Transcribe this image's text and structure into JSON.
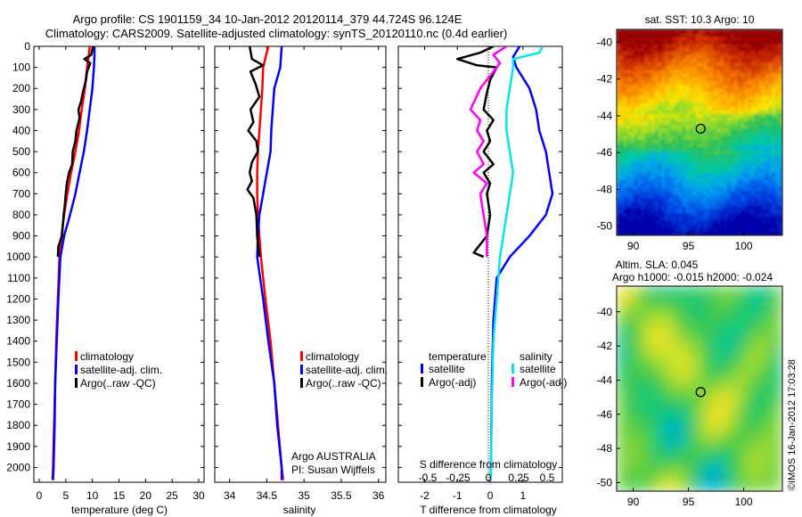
{
  "header": {
    "title_line1": "Argo profile: CS 1901159_34 10-Jan-2012 20120114_379 44.724S 96.124E",
    "title_line2": "Climatology: CARS2009. Satellite-adjusted climatology: synTS_20120110.nc (0.4d earlier)"
  },
  "colors": {
    "climatology": "#ff0000",
    "satellite": "#0000ff",
    "argo": "#000000",
    "salinity_satellite": "#00e5ee",
    "salinity_argo": "#ff00ff"
  },
  "chart_data": [
    {
      "id": "temperature",
      "type": "line",
      "xlabel": "temperature (deg C)",
      "xlim": [
        -1,
        31
      ],
      "xticks": [
        0,
        5,
        10,
        15,
        20,
        25,
        30
      ],
      "ylim": [
        2070,
        0
      ],
      "yticks": [
        0,
        100,
        200,
        300,
        400,
        500,
        600,
        700,
        800,
        900,
        1000,
        1100,
        1200,
        1300,
        1400,
        1500,
        1600,
        1700,
        1800,
        1900,
        2000
      ],
      "legend": [
        "climatology",
        "satellite-adj. clim.",
        "Argo(..raw -QC)"
      ],
      "series": [
        {
          "name": "climatology",
          "color": "#ff0000",
          "points": [
            [
              9.5,
              0
            ],
            [
              9.3,
              50
            ],
            [
              9.0,
              100
            ],
            [
              8.6,
              200
            ],
            [
              8.0,
              300
            ],
            [
              7.5,
              400
            ],
            [
              6.8,
              500
            ],
            [
              6.0,
              600
            ],
            [
              5.3,
              700
            ],
            [
              4.7,
              800
            ],
            [
              4.2,
              900
            ],
            [
              3.8,
              1000
            ],
            [
              3.5,
              1200
            ],
            [
              3.2,
              1400
            ],
            [
              3.0,
              1600
            ],
            [
              2.8,
              1800
            ],
            [
              2.6,
              2000
            ],
            [
              2.5,
              2060
            ]
          ]
        },
        {
          "name": "satellite-adj. clim.",
          "color": "#0000ff",
          "points": [
            [
              10.4,
              0
            ],
            [
              10.4,
              50
            ],
            [
              10.3,
              100
            ],
            [
              10.0,
              200
            ],
            [
              9.5,
              300
            ],
            [
              9.0,
              400
            ],
            [
              8.4,
              500
            ],
            [
              7.6,
              600
            ],
            [
              6.8,
              700
            ],
            [
              5.8,
              800
            ],
            [
              4.7,
              900
            ],
            [
              4.0,
              1000
            ],
            [
              3.6,
              1200
            ],
            [
              3.3,
              1400
            ],
            [
              3.0,
              1600
            ],
            [
              2.9,
              1800
            ],
            [
              2.7,
              2000
            ],
            [
              2.6,
              2060
            ]
          ]
        },
        {
          "name": "Argo(..raw -QC)",
          "color": "#000000",
          "points": [
            [
              10.1,
              0
            ],
            [
              9.8,
              40
            ],
            [
              8.5,
              60
            ],
            [
              9.6,
              80
            ],
            [
              9.0,
              120
            ],
            [
              8.8,
              160
            ],
            [
              8.2,
              220
            ],
            [
              7.9,
              260
            ],
            [
              7.4,
              300
            ],
            [
              7.6,
              340
            ],
            [
              7.0,
              400
            ],
            [
              6.8,
              450
            ],
            [
              6.3,
              500
            ],
            [
              6.2,
              560
            ],
            [
              5.6,
              600
            ],
            [
              5.2,
              650
            ],
            [
              5.0,
              700
            ],
            [
              4.8,
              760
            ],
            [
              4.6,
              800
            ],
            [
              4.3,
              900
            ],
            [
              3.6,
              950
            ],
            [
              3.5,
              1000
            ]
          ]
        }
      ]
    },
    {
      "id": "salinity",
      "type": "line",
      "xlabel": "salinity",
      "xlim": [
        33.8,
        36.1
      ],
      "xticks": [
        34,
        34.5,
        35,
        35.5,
        36
      ],
      "ylim": [
        2070,
        0
      ],
      "legend": [
        "climatology",
        "satellite-adj. clim.",
        "Argo(..raw -QC)"
      ],
      "annotations": [
        "Argo AUSTRALIA",
        "PI: Susan Wijffels"
      ],
      "series": [
        {
          "name": "climatology",
          "color": "#ff0000",
          "points": [
            [
              34.52,
              0
            ],
            [
              34.45,
              100
            ],
            [
              34.44,
              200
            ],
            [
              34.42,
              300
            ],
            [
              34.4,
              400
            ],
            [
              34.38,
              500
            ],
            [
              34.37,
              600
            ],
            [
              34.37,
              700
            ],
            [
              34.38,
              800
            ],
            [
              34.4,
              900
            ],
            [
              34.42,
              1000
            ],
            [
              34.48,
              1200
            ],
            [
              34.55,
              1400
            ],
            [
              34.6,
              1600
            ],
            [
              34.65,
              1800
            ],
            [
              34.7,
              2000
            ],
            [
              34.72,
              2060
            ]
          ]
        },
        {
          "name": "satellite-adj. clim.",
          "color": "#0000ff",
          "points": [
            [
              34.7,
              0
            ],
            [
              34.68,
              100
            ],
            [
              34.6,
              200
            ],
            [
              34.58,
              300
            ],
            [
              34.56,
              400
            ],
            [
              34.55,
              500
            ],
            [
              34.5,
              600
            ],
            [
              34.45,
              700
            ],
            [
              34.4,
              800
            ],
            [
              34.38,
              900
            ],
            [
              34.37,
              1000
            ],
            [
              34.45,
              1200
            ],
            [
              34.52,
              1400
            ],
            [
              34.6,
              1600
            ],
            [
              34.64,
              1800
            ],
            [
              34.7,
              2000
            ],
            [
              34.7,
              2060
            ]
          ]
        },
        {
          "name": "Argo(..raw -QC)",
          "color": "#000000",
          "points": [
            [
              34.27,
              0
            ],
            [
              34.3,
              60
            ],
            [
              34.45,
              90
            ],
            [
              34.28,
              120
            ],
            [
              34.35,
              180
            ],
            [
              34.4,
              240
            ],
            [
              34.28,
              300
            ],
            [
              34.32,
              360
            ],
            [
              34.25,
              400
            ],
            [
              34.36,
              450
            ],
            [
              34.38,
              500
            ],
            [
              34.3,
              550
            ],
            [
              34.27,
              600
            ],
            [
              34.3,
              640
            ],
            [
              34.24,
              680
            ],
            [
              34.32,
              720
            ],
            [
              34.36,
              800
            ],
            [
              34.37,
              900
            ],
            [
              34.4,
              1000
            ]
          ]
        }
      ]
    },
    {
      "id": "difference",
      "type": "line",
      "xlabel": "T difference from climatology",
      "xlabel_top": "S difference from climatology",
      "xlim": [
        -2.8,
        2.2
      ],
      "xticks": [
        -2,
        -1,
        0,
        1
      ],
      "xticks_s": [
        "-0.5",
        "-0.25",
        "0",
        "0.25",
        "0.5"
      ],
      "ylim": [
        2070,
        0
      ],
      "legend_titles": [
        "temperature",
        "salinity"
      ],
      "legend": [
        "satellite",
        "Argo(-adj)",
        "satellite",
        "Argo(-adj)"
      ],
      "series": [
        {
          "name": "satellite",
          "group": "temperature",
          "color": "#0000ff",
          "points": [
            [
              0.9,
              0
            ],
            [
              0.7,
              50
            ],
            [
              0.8,
              100
            ],
            [
              1.2,
              200
            ],
            [
              1.4,
              300
            ],
            [
              1.5,
              400
            ],
            [
              1.7,
              500
            ],
            [
              1.8,
              600
            ],
            [
              1.9,
              700
            ],
            [
              1.7,
              800
            ],
            [
              1.2,
              900
            ],
            [
              0.6,
              1000
            ],
            [
              0.2,
              1100
            ],
            [
              0.1,
              1300
            ],
            [
              0.05,
              1600
            ],
            [
              0.02,
              2060
            ]
          ]
        },
        {
          "name": "Argo(-adj)",
          "group": "temperature",
          "color": "#000000",
          "points": [
            [
              0.1,
              0
            ],
            [
              -0.3,
              30
            ],
            [
              -1.0,
              60
            ],
            [
              -0.4,
              90
            ],
            [
              0.2,
              100
            ],
            [
              0.0,
              160
            ],
            [
              -0.1,
              220
            ],
            [
              -0.2,
              300
            ],
            [
              0.1,
              350
            ],
            [
              -0.1,
              400
            ],
            [
              0.0,
              450
            ],
            [
              -0.2,
              500
            ],
            [
              0.1,
              560
            ],
            [
              -0.2,
              600
            ],
            [
              0.0,
              650
            ],
            [
              -0.1,
              700
            ],
            [
              0.0,
              800
            ],
            [
              -0.1,
              900
            ],
            [
              -0.5,
              980
            ],
            [
              -0.2,
              1000
            ]
          ]
        },
        {
          "name": "satellite",
          "group": "salinity",
          "color": "#00e5ee",
          "points": [
            [
              1.6,
              0
            ],
            [
              1.5,
              30
            ],
            [
              0.7,
              60
            ],
            [
              0.7,
              100
            ],
            [
              0.6,
              200
            ],
            [
              0.5,
              300
            ],
            [
              0.5,
              400
            ],
            [
              0.6,
              500
            ],
            [
              0.7,
              600
            ],
            [
              0.6,
              700
            ],
            [
              0.5,
              800
            ],
            [
              0.4,
              900
            ],
            [
              0.3,
              1000
            ],
            [
              0.2,
              1200
            ],
            [
              0.1,
              1400
            ],
            [
              0.05,
              1700
            ],
            [
              0.02,
              2060
            ]
          ]
        },
        {
          "name": "Argo(-adj)",
          "group": "salinity",
          "color": "#ff00ff",
          "points": [
            [
              0.5,
              0
            ],
            [
              0.1,
              40
            ],
            [
              0.3,
              80
            ],
            [
              0.1,
              120
            ],
            [
              -0.3,
              200
            ],
            [
              -0.6,
              300
            ],
            [
              -0.3,
              350
            ],
            [
              -0.4,
              400
            ],
            [
              -0.2,
              450
            ],
            [
              -0.4,
              500
            ],
            [
              -0.2,
              560
            ],
            [
              -0.5,
              600
            ],
            [
              -0.1,
              650
            ],
            [
              -0.3,
              700
            ],
            [
              -0.2,
              800
            ],
            [
              -0.1,
              900
            ],
            [
              -0.1,
              1000
            ]
          ]
        }
      ]
    },
    {
      "id": "sst_map",
      "type": "heatmap",
      "title": "sat. SST: 10.3 Argo: 10",
      "xlim": [
        88.5,
        103.5
      ],
      "ylim": [
        -50.5,
        -39.3
      ],
      "xticks": [
        90,
        95,
        100
      ],
      "yticks": [
        -40,
        -42,
        -44,
        -46,
        -48,
        -50
      ],
      "marker": [
        96.1,
        -44.7
      ]
    },
    {
      "id": "sla_map",
      "type": "heatmap",
      "title": "Altim. SLA: 0.045",
      "subtitle": "Argo h1000: -0.015 h2000: -0.024",
      "xlim": [
        88.5,
        103.5
      ],
      "ylim": [
        -50.5,
        -38.5
      ],
      "xticks": [
        90,
        95,
        100
      ],
      "yticks": [
        -40,
        -42,
        -44,
        -46,
        -48,
        -50
      ],
      "marker": [
        96.1,
        -44.7
      ]
    }
  ],
  "footer": {
    "credit": "©IMOS 16-Jan-2012 17:03:28"
  }
}
